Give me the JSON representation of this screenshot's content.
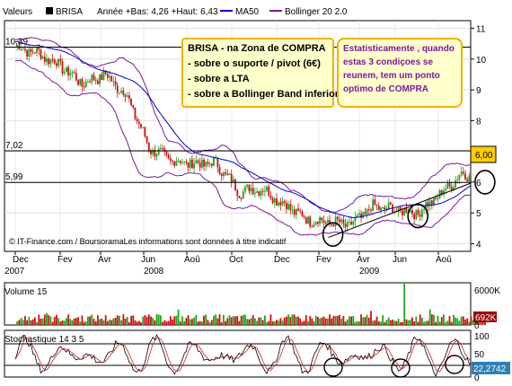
{
  "header": {
    "valeurs_label": "Valeurs",
    "ticker": "BRISA",
    "range_text": "Année +Bas: 4,26 +Haut: 6,43",
    "ma_label": "MA50",
    "bb_label": "Bollinger 20 2.0"
  },
  "annotations": {
    "zone_lines": [
      "BRISA - na Zona de COMPRA",
      "- sobre o suporte / pivot (6€)",
      "- sobre a LTA",
      "- sobre a Bollinger Band inferior"
    ],
    "stat_lines": [
      "Estatisticamente , quando",
      "estas 3 condiçoes se",
      "reunem, tem um ponto",
      "optimo de COMPRA"
    ]
  },
  "footer": {
    "copyright": "© IT-Finance.com / BoursoramaLes informations sont données à titre indicatif"
  },
  "price_labels": {
    "left": [
      "10,39",
      "7,02",
      "5,99"
    ],
    "last": "6,00"
  },
  "volume": {
    "title": "Volume 15",
    "axis_ticks": [
      "6000K",
      "0"
    ],
    "last": "692K"
  },
  "stochastic": {
    "title": "Stochastique 14 3 5",
    "axis_ticks": [
      "100",
      "50",
      "0"
    ],
    "last": "22,2742"
  },
  "colors": {
    "candle_up": "#1ea51e",
    "candle_down": "#cc1111",
    "ma50": "#0000cc",
    "bollinger": "#7a1a99",
    "last_price_bg": "#ffcc00",
    "volume_last_bg": "#990000",
    "stoch_last_bg": "#2f7fb4"
  },
  "chart_data": [
    {
      "type": "candlestick",
      "title": "BRISA",
      "x_ticks": [
        "Dec",
        "Fev",
        "Avr",
        "Jun",
        "Aoû",
        "Oct",
        "Dec",
        "Fev",
        "Avr",
        "Jun",
        "Aoû"
      ],
      "year_labels": [
        "2007",
        "2008",
        "2009"
      ],
      "y_ticks": [
        4,
        5,
        6,
        7,
        8,
        9,
        10,
        11
      ],
      "ylim": [
        3.75,
        11.25
      ],
      "horizontal_lines": [
        10.39,
        7.02,
        5.99
      ],
      "last_value": 6.0,
      "close_path": [
        [
          "Dec 2007",
          10.4
        ],
        [
          "Jan 2008",
          10.2
        ],
        [
          "Fev 2008",
          9.8
        ],
        [
          "Mar 2008",
          9.2
        ],
        [
          "Avr 2008",
          9.5
        ],
        [
          "Mai 2008",
          8.8
        ],
        [
          "Jun 2008",
          7.1
        ],
        [
          "Jul 2008",
          6.7
        ],
        [
          "Aoû 2008",
          6.6
        ],
        [
          "Sep 2008",
          6.6
        ],
        [
          "Oct 2008",
          5.7
        ],
        [
          "Nov 2008",
          5.8
        ],
        [
          "Dec 2008",
          5.3
        ],
        [
          "Jan 2009",
          4.8
        ],
        [
          "Fev 2009",
          4.7
        ],
        [
          "Mar 2009",
          4.6
        ],
        [
          "Avr 2009",
          5.2
        ],
        [
          "Mai 2009",
          5.1
        ],
        [
          "Jun 2009",
          5.0
        ],
        [
          "Jul 2009",
          5.6
        ],
        [
          "Aoû 2009",
          6.3
        ],
        [
          "Sep 2009",
          6.0
        ]
      ],
      "series": [
        {
          "name": "MA50",
          "style": "line"
        },
        {
          "name": "Bollinger 20 2.0",
          "style": "band"
        }
      ],
      "trendline": [
        [
          "Fev 2009",
          4.2
        ],
        [
          "Sep 2009",
          6.3
        ]
      ],
      "circles": [
        [
          "Fev 2009",
          4.3
        ],
        [
          "Jun 2009",
          4.9
        ],
        [
          "Sep 2009",
          6.0
        ]
      ]
    },
    {
      "type": "bar",
      "title": "Volume 15",
      "ylim": [
        0,
        6000000
      ],
      "last_value": 692000
    },
    {
      "type": "line",
      "title": "Stochastique 14 3 5",
      "ylim": [
        0,
        100
      ],
      "y_ticks": [
        0,
        50,
        100
      ],
      "last_value": 22.2742
    }
  ]
}
